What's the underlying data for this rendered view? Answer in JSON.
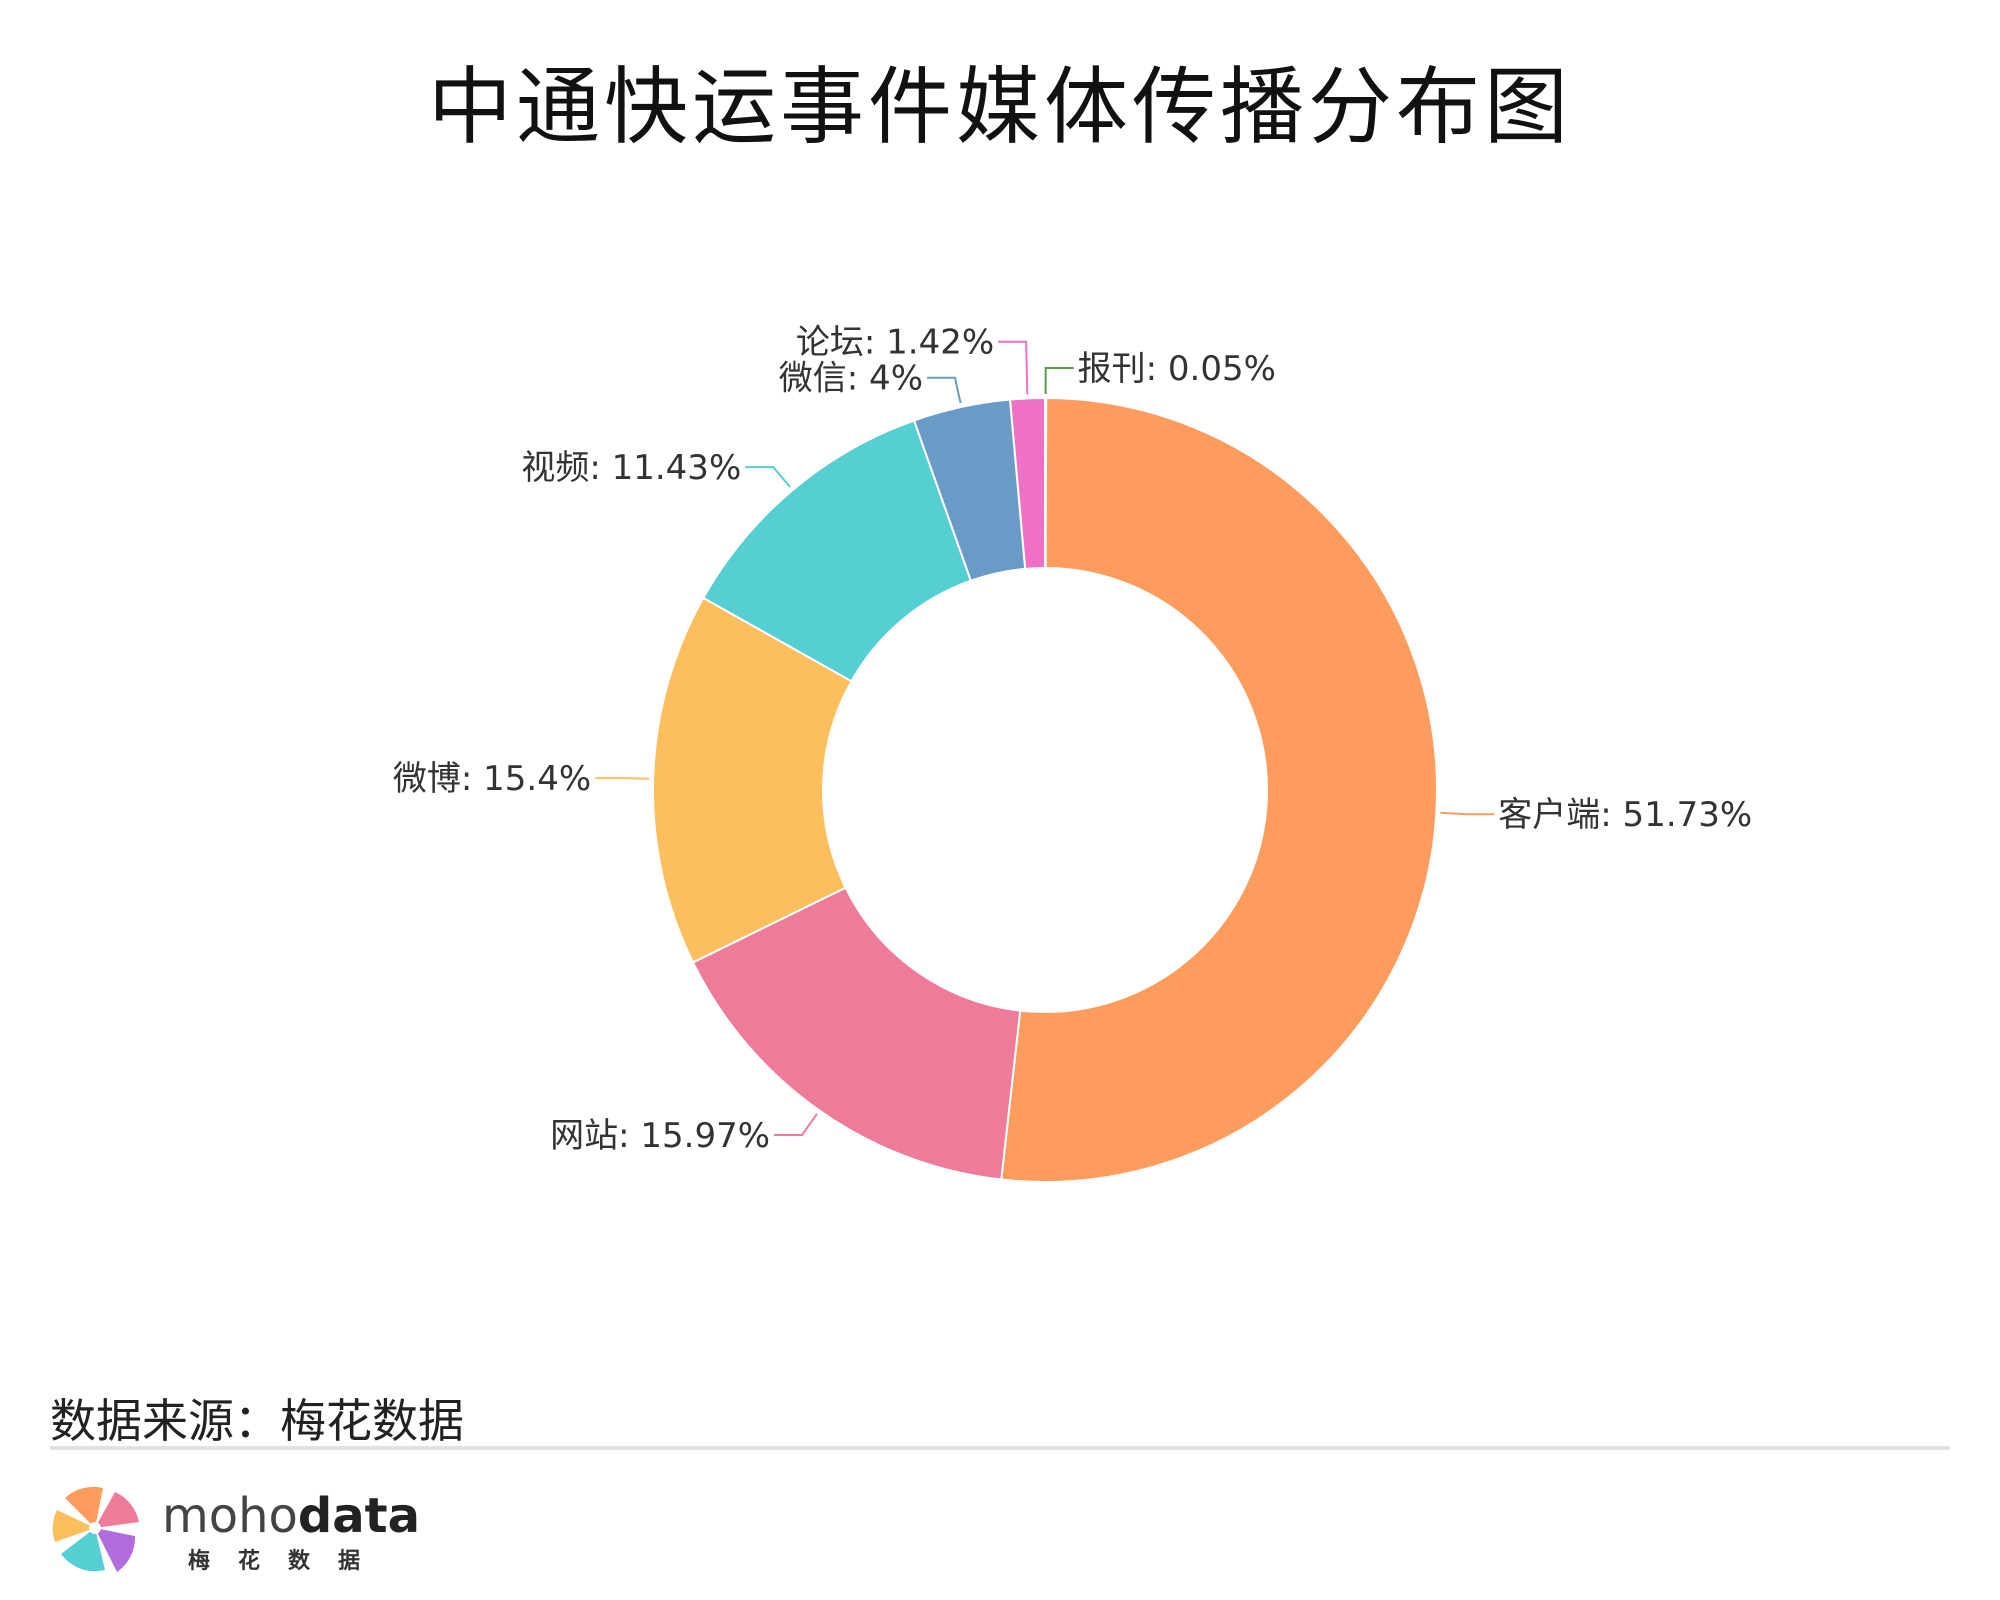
{
  "title": "中通快运事件媒体传播分布图",
  "source_text": "数据来源：梅花数据",
  "brand": {
    "light": "moho",
    "bold": "data",
    "sub": "梅花数据"
  },
  "chart_data": {
    "type": "pie",
    "title": "中通快运事件媒体传播分布图",
    "unit": "%",
    "slices": [
      {
        "label": "报刊",
        "value": 0.05,
        "color": "#5a9a4a"
      },
      {
        "label": "客户端",
        "value": 51.73,
        "color": "#fe9c5e"
      },
      {
        "label": "网站",
        "value": 15.97,
        "color": "#ee7b9a"
      },
      {
        "label": "微博",
        "value": 15.4,
        "color": "#fdbe5d"
      },
      {
        "label": "视频",
        "value": 11.43,
        "color": "#56cfd2"
      },
      {
        "label": "微信",
        "value": 4,
        "color": "#6a9bc7"
      },
      {
        "label": "论坛",
        "value": 1.42,
        "color": "#f070c8"
      }
    ],
    "label_format": "{label}: {value}%"
  }
}
